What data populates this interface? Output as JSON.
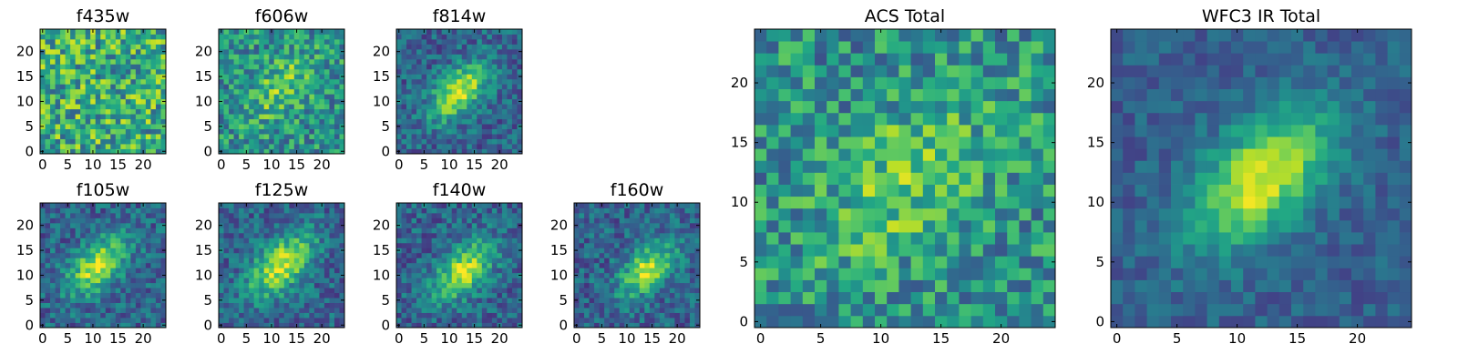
{
  "figure": {
    "description": "HST filter cutouts and stacked images"
  },
  "chart_data": [
    {
      "type": "heatmap",
      "title": "f435w",
      "colormap": "viridis",
      "grid_size": [
        25,
        25
      ],
      "x_ticks": [
        "0",
        "5",
        "10",
        "15",
        "20"
      ],
      "y_ticks": [
        "0",
        "5",
        "10",
        "15",
        "20"
      ],
      "pattern": "noise",
      "center": [
        14,
        13
      ],
      "spread": 6,
      "seed": 11
    },
    {
      "type": "heatmap",
      "title": "f606w",
      "colormap": "viridis",
      "grid_size": [
        25,
        25
      ],
      "x_ticks": [
        "0",
        "5",
        "10",
        "15",
        "20"
      ],
      "y_ticks": [
        "0",
        "5",
        "10",
        "15",
        "20"
      ],
      "pattern": "weak-source",
      "center": [
        12,
        13
      ],
      "spread": 6,
      "seed": 23
    },
    {
      "type": "heatmap",
      "title": "f814w",
      "colormap": "viridis",
      "grid_size": [
        25,
        25
      ],
      "x_ticks": [
        "0",
        "5",
        "10",
        "15",
        "20"
      ],
      "y_ticks": [
        "0",
        "5",
        "10",
        "15",
        "20"
      ],
      "pattern": "source",
      "center": [
        12,
        12
      ],
      "spread": 5,
      "seed": 37
    },
    {
      "type": "heatmap",
      "title": "f105w",
      "colormap": "viridis",
      "grid_size": [
        25,
        25
      ],
      "x_ticks": [
        "0",
        "5",
        "10",
        "15",
        "20"
      ],
      "y_ticks": [
        "0",
        "5",
        "10",
        "15",
        "20"
      ],
      "pattern": "source",
      "center": [
        11,
        12
      ],
      "spread": 5,
      "seed": 41
    },
    {
      "type": "heatmap",
      "title": "f125w",
      "colormap": "viridis",
      "grid_size": [
        25,
        25
      ],
      "x_ticks": [
        "0",
        "5",
        "10",
        "15",
        "20"
      ],
      "y_ticks": [
        "0",
        "5",
        "10",
        "15",
        "20"
      ],
      "pattern": "source",
      "center": [
        12,
        12
      ],
      "spread": 5.5,
      "seed": 53
    },
    {
      "type": "heatmap",
      "title": "f140w",
      "colormap": "viridis",
      "grid_size": [
        25,
        25
      ],
      "x_ticks": [
        "0",
        "5",
        "10",
        "15",
        "20"
      ],
      "y_ticks": [
        "0",
        "5",
        "10",
        "15",
        "20"
      ],
      "pattern": "source",
      "center": [
        13,
        11
      ],
      "spread": 5,
      "seed": 67
    },
    {
      "type": "heatmap",
      "title": "f160w",
      "colormap": "viridis",
      "grid_size": [
        25,
        25
      ],
      "x_ticks": [
        "0",
        "5",
        "10",
        "15",
        "20"
      ],
      "y_ticks": [
        "0",
        "5",
        "10",
        "15",
        "20"
      ],
      "pattern": "source",
      "center": [
        14,
        11
      ],
      "spread": 4.5,
      "seed": 79
    },
    {
      "type": "heatmap",
      "title": "ACS Total",
      "colormap": "viridis",
      "grid_size": [
        25,
        25
      ],
      "x_ticks": [
        "0",
        "5",
        "10",
        "15",
        "20"
      ],
      "y_ticks": [
        "0",
        "5",
        "10",
        "15",
        "20"
      ],
      "pattern": "weak-source",
      "center": [
        12,
        12
      ],
      "spread": 6,
      "seed": 97
    },
    {
      "type": "heatmap",
      "title": "WFC3 IR Total",
      "colormap": "viridis",
      "grid_size": [
        25,
        25
      ],
      "x_ticks": [
        "0",
        "5",
        "10",
        "15",
        "20"
      ],
      "y_ticks": [
        "0",
        "5",
        "10",
        "15",
        "20"
      ],
      "pattern": "smooth-source",
      "center": [
        12,
        12
      ],
      "spread": 5,
      "seed": 113
    }
  ]
}
